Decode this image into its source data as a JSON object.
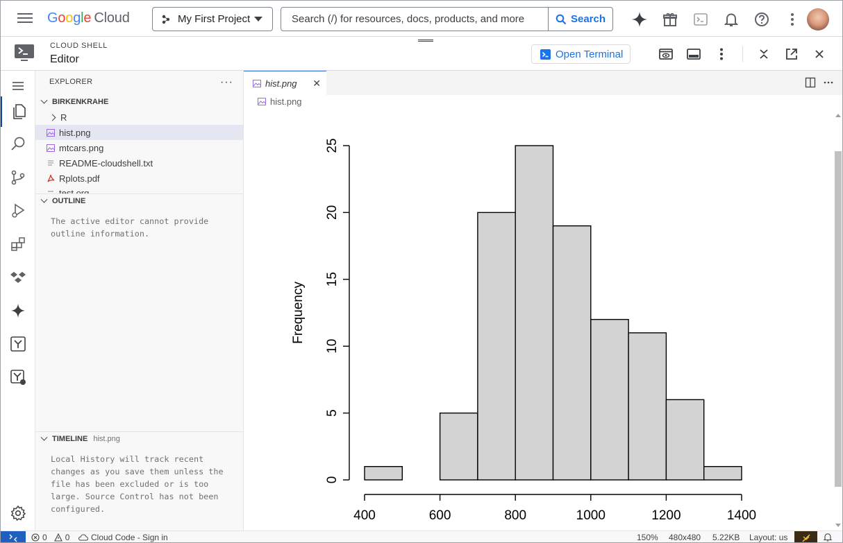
{
  "topbar": {
    "logo_google": "Google",
    "logo_cloud": "Cloud",
    "project": "My First Project",
    "search_placeholder": "Search (/) for resources, docs, products, and more",
    "search_button": "Search"
  },
  "shell": {
    "label_small": "CLOUD SHELL",
    "label_big": "Editor",
    "open_terminal": "Open Terminal"
  },
  "sidebar": {
    "explorer_title": "EXPLORER",
    "workspace": "BIRKENKRAHE",
    "files": [
      {
        "name": "R",
        "type": "folder"
      },
      {
        "name": "hist.png",
        "type": "image",
        "selected": true
      },
      {
        "name": "mtcars.png",
        "type": "image"
      },
      {
        "name": "README-cloudshell.txt",
        "type": "text"
      },
      {
        "name": "Rplots.pdf",
        "type": "pdf"
      },
      {
        "name": "test.org",
        "type": "text"
      }
    ],
    "outline_title": "OUTLINE",
    "outline_text": "The active editor cannot provide outline information.",
    "timeline_title": "TIMELINE",
    "timeline_file": "hist.png",
    "timeline_text": "Local History will track recent changes as you save them unless the file has been excluded or is too large. Source Control has not been configured."
  },
  "editor": {
    "tab_label": "hist.png",
    "breadcrumb": "hist.png"
  },
  "chart_data": {
    "type": "bar",
    "title": "",
    "xlabel": "",
    "ylabel": "Frequency",
    "bins": [
      [
        400,
        500
      ],
      [
        500,
        600
      ],
      [
        600,
        700
      ],
      [
        700,
        800
      ],
      [
        800,
        900
      ],
      [
        900,
        1000
      ],
      [
        1000,
        1100
      ],
      [
        1100,
        1200
      ],
      [
        1200,
        1300
      ],
      [
        1300,
        1400
      ]
    ],
    "values": [
      1,
      0,
      5,
      20,
      25,
      19,
      12,
      11,
      6,
      1
    ],
    "x_ticks": [
      400,
      600,
      800,
      1000,
      1200,
      1400
    ],
    "y_ticks": [
      0,
      5,
      10,
      15,
      20,
      25
    ],
    "xlim": [
      400,
      1400
    ],
    "ylim": [
      0,
      25
    ],
    "bar_color": "#d3d3d3",
    "grid": false
  },
  "statusbar": {
    "errors": "0",
    "warnings": "0",
    "cloud_code": "Cloud Code - Sign in",
    "zoom": "150%",
    "dimensions": "480x480",
    "size": "5.22KB",
    "layout": "Layout: us"
  },
  "colors": {
    "accent": "#1a73e8",
    "image_icon": "#9c6ade",
    "pdf_icon": "#d93025"
  }
}
